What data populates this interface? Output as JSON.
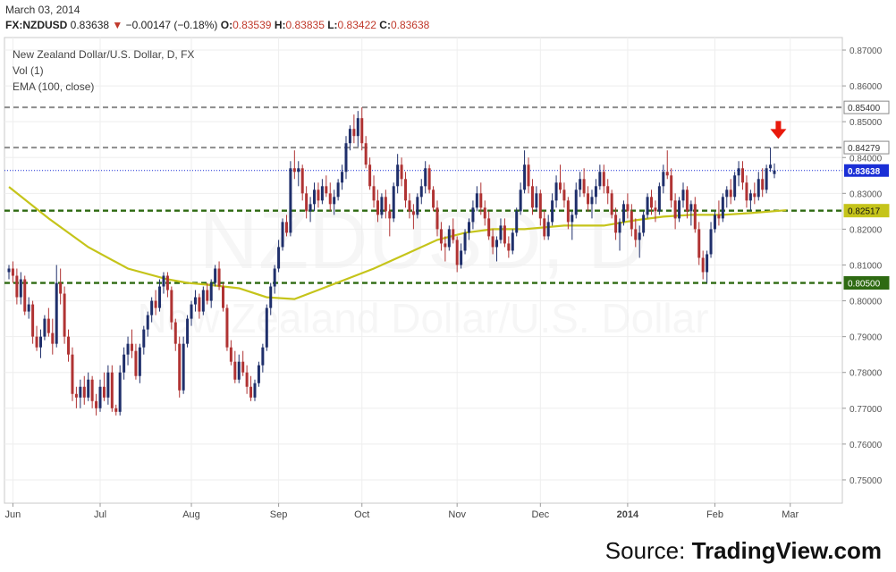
{
  "header": {
    "date": "March 03, 2014",
    "symbol": "FX:NZDUSD",
    "last": "0.83638",
    "change_arrow": "▼",
    "change": "−0.00147 (−0.18%)",
    "open_label": "O:",
    "open": "0.83539",
    "high_label": "H:",
    "high": "0.83835",
    "low_label": "L:",
    "low": "0.83422",
    "close_label": "C:",
    "close": "0.83638"
  },
  "legend": {
    "title": "New Zealand Dollar/U.S. Dollar, D, FX",
    "vol": "Vol (1)",
    "ema": "EMA (100, close)"
  },
  "watermark": {
    "line1": "NZDUSD, D",
    "line2": "New Zealand Dollar/U.S. Dollar"
  },
  "source": {
    "prefix": "Source: ",
    "brand": "TradingView.com"
  },
  "colors": {
    "up": "#1f2f6b",
    "down": "#b03333",
    "ema": "#c5c41a",
    "resistance": "#8c8c8c",
    "support": "#2e6a12",
    "arrow": "#e8190c",
    "price_line": "#1a2fd6"
  },
  "chart_data": {
    "type": "candlestick",
    "title": "New Zealand Dollar/U.S. Dollar, D, FX",
    "ylim": [
      0.7435,
      0.8735
    ],
    "y_ticks": [
      "0.87000",
      "0.86000",
      "0.85000",
      "0.84000",
      "0.83000",
      "0.82000",
      "0.81000",
      "0.80000",
      "0.79000",
      "0.78000",
      "0.77000",
      "0.76000",
      "0.75000"
    ],
    "x_labels": [
      {
        "label": "Jun",
        "index": 1
      },
      {
        "label": "Jul",
        "index": 23
      },
      {
        "label": "Aug",
        "index": 46
      },
      {
        "label": "Sep",
        "index": 68
      },
      {
        "label": "Oct",
        "index": 89
      },
      {
        "label": "Nov",
        "index": 113
      },
      {
        "label": "Dec",
        "index": 134
      },
      {
        "label": "2014",
        "index": 156
      },
      {
        "label": "Feb",
        "index": 178
      },
      {
        "label": "Mar",
        "index": 197
      }
    ],
    "horizontal_levels": [
      {
        "value": 0.854,
        "label": "0.85400",
        "style": "resistance"
      },
      {
        "value": 0.84279,
        "label": "0.84279",
        "style": "resistance"
      },
      {
        "value": 0.82517,
        "label": "0.82517",
        "style": "support"
      },
      {
        "value": 0.805,
        "label": "0.80500",
        "style": "support"
      }
    ],
    "last_price": {
      "value": 0.83638,
      "label": "0.83638"
    },
    "annotation": {
      "type": "down-arrow",
      "index": 194,
      "value": 0.8452
    },
    "ema": [
      [
        0,
        0.8318
      ],
      [
        10,
        0.823
      ],
      [
        20,
        0.815
      ],
      [
        30,
        0.809
      ],
      [
        40,
        0.806
      ],
      [
        45,
        0.805
      ],
      [
        50,
        0.8045
      ],
      [
        58,
        0.8035
      ],
      [
        65,
        0.801
      ],
      [
        72,
        0.8005
      ],
      [
        78,
        0.803
      ],
      [
        85,
        0.806
      ],
      [
        92,
        0.809
      ],
      [
        100,
        0.813
      ],
      [
        108,
        0.817
      ],
      [
        115,
        0.819
      ],
      [
        122,
        0.82
      ],
      [
        130,
        0.82
      ],
      [
        140,
        0.821
      ],
      [
        150,
        0.821
      ],
      [
        158,
        0.8225
      ],
      [
        165,
        0.8235
      ],
      [
        172,
        0.824
      ],
      [
        180,
        0.824
      ],
      [
        187,
        0.8245
      ],
      [
        196,
        0.8253
      ]
    ],
    "ohlc": [
      [
        0.808,
        0.81,
        0.806,
        0.809
      ],
      [
        0.809,
        0.811,
        0.805,
        0.807
      ],
      [
        0.807,
        0.809,
        0.799,
        0.801
      ],
      [
        0.801,
        0.808,
        0.799,
        0.806
      ],
      [
        0.806,
        0.807,
        0.796,
        0.797
      ],
      [
        0.797,
        0.801,
        0.795,
        0.799
      ],
      [
        0.799,
        0.8,
        0.788,
        0.79
      ],
      [
        0.79,
        0.793,
        0.786,
        0.787
      ],
      [
        0.787,
        0.792,
        0.784,
        0.79
      ],
      [
        0.79,
        0.796,
        0.789,
        0.795
      ],
      [
        0.795,
        0.798,
        0.79,
        0.791
      ],
      [
        0.791,
        0.795,
        0.785,
        0.788
      ],
      [
        0.788,
        0.81,
        0.787,
        0.805
      ],
      [
        0.805,
        0.809,
        0.799,
        0.802
      ],
      [
        0.802,
        0.804,
        0.788,
        0.79
      ],
      [
        0.79,
        0.792,
        0.783,
        0.785
      ],
      [
        0.785,
        0.787,
        0.772,
        0.774
      ],
      [
        0.774,
        0.776,
        0.77,
        0.773
      ],
      [
        0.773,
        0.778,
        0.77,
        0.776
      ],
      [
        0.776,
        0.779,
        0.771,
        0.773
      ],
      [
        0.773,
        0.78,
        0.772,
        0.778
      ],
      [
        0.778,
        0.779,
        0.77,
        0.772
      ],
      [
        0.772,
        0.774,
        0.768,
        0.77
      ],
      [
        0.77,
        0.778,
        0.769,
        0.776
      ],
      [
        0.776,
        0.78,
        0.772,
        0.773
      ],
      [
        0.773,
        0.782,
        0.771,
        0.78
      ],
      [
        0.78,
        0.782,
        0.769,
        0.77
      ],
      [
        0.77,
        0.771,
        0.768,
        0.769
      ],
      [
        0.769,
        0.782,
        0.768,
        0.78
      ],
      [
        0.78,
        0.787,
        0.778,
        0.785
      ],
      [
        0.785,
        0.79,
        0.782,
        0.788
      ],
      [
        0.788,
        0.792,
        0.784,
        0.786
      ],
      [
        0.786,
        0.788,
        0.778,
        0.779
      ],
      [
        0.779,
        0.788,
        0.777,
        0.787
      ],
      [
        0.787,
        0.793,
        0.785,
        0.792
      ],
      [
        0.792,
        0.797,
        0.79,
        0.796
      ],
      [
        0.796,
        0.801,
        0.794,
        0.8
      ],
      [
        0.8,
        0.803,
        0.796,
        0.798
      ],
      [
        0.798,
        0.806,
        0.797,
        0.804
      ],
      [
        0.804,
        0.808,
        0.802,
        0.807
      ],
      [
        0.807,
        0.808,
        0.801,
        0.803
      ],
      [
        0.803,
        0.804,
        0.792,
        0.794
      ],
      [
        0.794,
        0.795,
        0.786,
        0.788
      ],
      [
        0.788,
        0.79,
        0.773,
        0.775
      ],
      [
        0.775,
        0.79,
        0.774,
        0.788
      ],
      [
        0.788,
        0.796,
        0.787,
        0.795
      ],
      [
        0.795,
        0.8,
        0.793,
        0.799
      ],
      [
        0.799,
        0.803,
        0.797,
        0.801
      ],
      [
        0.801,
        0.802,
        0.795,
        0.797
      ],
      [
        0.797,
        0.804,
        0.796,
        0.803
      ],
      [
        0.803,
        0.805,
        0.799,
        0.8
      ],
      [
        0.8,
        0.806,
        0.798,
        0.805
      ],
      [
        0.805,
        0.81,
        0.804,
        0.809
      ],
      [
        0.809,
        0.811,
        0.803,
        0.804
      ],
      [
        0.804,
        0.805,
        0.797,
        0.798
      ],
      [
        0.798,
        0.799,
        0.786,
        0.787
      ],
      [
        0.787,
        0.789,
        0.782,
        0.783
      ],
      [
        0.783,
        0.786,
        0.777,
        0.778
      ],
      [
        0.778,
        0.785,
        0.777,
        0.783
      ],
      [
        0.783,
        0.786,
        0.779,
        0.78
      ],
      [
        0.78,
        0.782,
        0.774,
        0.776
      ],
      [
        0.776,
        0.779,
        0.772,
        0.773
      ],
      [
        0.773,
        0.778,
        0.772,
        0.777
      ],
      [
        0.777,
        0.783,
        0.776,
        0.782
      ],
      [
        0.782,
        0.788,
        0.78,
        0.787
      ],
      [
        0.787,
        0.799,
        0.786,
        0.798
      ],
      [
        0.798,
        0.805,
        0.796,
        0.804
      ],
      [
        0.804,
        0.81,
        0.802,
        0.809
      ],
      [
        0.809,
        0.817,
        0.808,
        0.815
      ],
      [
        0.815,
        0.823,
        0.814,
        0.822
      ],
      [
        0.822,
        0.824,
        0.818,
        0.819
      ],
      [
        0.819,
        0.839,
        0.818,
        0.837
      ],
      [
        0.837,
        0.842,
        0.834,
        0.836
      ],
      [
        0.836,
        0.839,
        0.832,
        0.837
      ],
      [
        0.837,
        0.838,
        0.828,
        0.83
      ],
      [
        0.83,
        0.832,
        0.823,
        0.825
      ],
      [
        0.825,
        0.829,
        0.822,
        0.827
      ],
      [
        0.827,
        0.833,
        0.825,
        0.831
      ],
      [
        0.831,
        0.833,
        0.826,
        0.828
      ],
      [
        0.828,
        0.834,
        0.827,
        0.832
      ],
      [
        0.832,
        0.835,
        0.829,
        0.83
      ],
      [
        0.83,
        0.833,
        0.825,
        0.827
      ],
      [
        0.827,
        0.831,
        0.824,
        0.829
      ],
      [
        0.829,
        0.834,
        0.828,
        0.833
      ],
      [
        0.833,
        0.838,
        0.831,
        0.836
      ],
      [
        0.836,
        0.846,
        0.834,
        0.844
      ],
      [
        0.844,
        0.849,
        0.842,
        0.848
      ],
      [
        0.848,
        0.852,
        0.844,
        0.846
      ],
      [
        0.846,
        0.853,
        0.843,
        0.851
      ],
      [
        0.851,
        0.854,
        0.842,
        0.844
      ],
      [
        0.844,
        0.846,
        0.837,
        0.838
      ],
      [
        0.838,
        0.84,
        0.831,
        0.832
      ],
      [
        0.832,
        0.835,
        0.826,
        0.828
      ],
      [
        0.828,
        0.831,
        0.822,
        0.824
      ],
      [
        0.824,
        0.83,
        0.823,
        0.829
      ],
      [
        0.829,
        0.831,
        0.823,
        0.825
      ],
      [
        0.825,
        0.827,
        0.818,
        0.823
      ],
      [
        0.823,
        0.833,
        0.822,
        0.832
      ],
      [
        0.832,
        0.841,
        0.83,
        0.838
      ],
      [
        0.838,
        0.84,
        0.832,
        0.834
      ],
      [
        0.834,
        0.836,
        0.826,
        0.828
      ],
      [
        0.828,
        0.83,
        0.823,
        0.825
      ],
      [
        0.825,
        0.827,
        0.82,
        0.824
      ],
      [
        0.824,
        0.83,
        0.823,
        0.829
      ],
      [
        0.829,
        0.834,
        0.827,
        0.832
      ],
      [
        0.832,
        0.839,
        0.83,
        0.837
      ],
      [
        0.837,
        0.838,
        0.83,
        0.831
      ],
      [
        0.831,
        0.832,
        0.825,
        0.826
      ],
      [
        0.826,
        0.828,
        0.818,
        0.82
      ],
      [
        0.82,
        0.822,
        0.814,
        0.816
      ],
      [
        0.816,
        0.818,
        0.811,
        0.815
      ],
      [
        0.815,
        0.821,
        0.814,
        0.82
      ],
      [
        0.82,
        0.823,
        0.816,
        0.817
      ],
      [
        0.817,
        0.818,
        0.808,
        0.81
      ],
      [
        0.81,
        0.816,
        0.809,
        0.814
      ],
      [
        0.814,
        0.82,
        0.813,
        0.819
      ],
      [
        0.819,
        0.823,
        0.817,
        0.822
      ],
      [
        0.822,
        0.828,
        0.82,
        0.826
      ],
      [
        0.826,
        0.832,
        0.825,
        0.83
      ],
      [
        0.83,
        0.833,
        0.824,
        0.826
      ],
      [
        0.826,
        0.828,
        0.821,
        0.823
      ],
      [
        0.823,
        0.825,
        0.817,
        0.818
      ],
      [
        0.818,
        0.82,
        0.813,
        0.815
      ],
      [
        0.815,
        0.818,
        0.811,
        0.817
      ],
      [
        0.817,
        0.823,
        0.816,
        0.821
      ],
      [
        0.821,
        0.823,
        0.815,
        0.816
      ],
      [
        0.816,
        0.818,
        0.812,
        0.814
      ],
      [
        0.814,
        0.82,
        0.813,
        0.819
      ],
      [
        0.819,
        0.826,
        0.818,
        0.825
      ],
      [
        0.825,
        0.833,
        0.824,
        0.831
      ],
      [
        0.831,
        0.842,
        0.83,
        0.838
      ],
      [
        0.838,
        0.84,
        0.83,
        0.832
      ],
      [
        0.832,
        0.834,
        0.824,
        0.826
      ],
      [
        0.826,
        0.832,
        0.825,
        0.83
      ],
      [
        0.83,
        0.831,
        0.821,
        0.823
      ],
      [
        0.823,
        0.825,
        0.817,
        0.818
      ],
      [
        0.818,
        0.824,
        0.817,
        0.822
      ],
      [
        0.822,
        0.83,
        0.821,
        0.828
      ],
      [
        0.828,
        0.835,
        0.826,
        0.833
      ],
      [
        0.833,
        0.838,
        0.83,
        0.831
      ],
      [
        0.831,
        0.833,
        0.826,
        0.828
      ],
      [
        0.828,
        0.829,
        0.82,
        0.822
      ],
      [
        0.822,
        0.825,
        0.817,
        0.824
      ],
      [
        0.824,
        0.833,
        0.823,
        0.831
      ],
      [
        0.831,
        0.836,
        0.829,
        0.834
      ],
      [
        0.834,
        0.837,
        0.829,
        0.83
      ],
      [
        0.83,
        0.832,
        0.825,
        0.827
      ],
      [
        0.827,
        0.831,
        0.823,
        0.829
      ],
      [
        0.829,
        0.834,
        0.827,
        0.832
      ],
      [
        0.832,
        0.838,
        0.831,
        0.836
      ],
      [
        0.836,
        0.838,
        0.83,
        0.832
      ],
      [
        0.832,
        0.834,
        0.827,
        0.83
      ],
      [
        0.83,
        0.831,
        0.823,
        0.824
      ],
      [
        0.824,
        0.826,
        0.817,
        0.819
      ],
      [
        0.819,
        0.823,
        0.814,
        0.822
      ],
      [
        0.822,
        0.828,
        0.821,
        0.827
      ],
      [
        0.827,
        0.83,
        0.823,
        0.825
      ],
      [
        0.825,
        0.827,
        0.818,
        0.82
      ],
      [
        0.82,
        0.823,
        0.815,
        0.817
      ],
      [
        0.817,
        0.821,
        0.812,
        0.819
      ],
      [
        0.819,
        0.825,
        0.818,
        0.824
      ],
      [
        0.824,
        0.83,
        0.823,
        0.829
      ],
      [
        0.829,
        0.831,
        0.824,
        0.826
      ],
      [
        0.826,
        0.828,
        0.822,
        0.825
      ],
      [
        0.825,
        0.833,
        0.824,
        0.832
      ],
      [
        0.832,
        0.838,
        0.83,
        0.836
      ],
      [
        0.836,
        0.842,
        0.834,
        0.835
      ],
      [
        0.835,
        0.837,
        0.826,
        0.828
      ],
      [
        0.828,
        0.83,
        0.82,
        0.823
      ],
      [
        0.823,
        0.829,
        0.822,
        0.828
      ],
      [
        0.828,
        0.833,
        0.826,
        0.831
      ],
      [
        0.831,
        0.832,
        0.823,
        0.825
      ],
      [
        0.825,
        0.828,
        0.821,
        0.827
      ],
      [
        0.827,
        0.829,
        0.819,
        0.82
      ],
      [
        0.82,
        0.822,
        0.81,
        0.812
      ],
      [
        0.812,
        0.814,
        0.806,
        0.808
      ],
      [
        0.808,
        0.814,
        0.805,
        0.813
      ],
      [
        0.813,
        0.822,
        0.812,
        0.82
      ],
      [
        0.82,
        0.825,
        0.819,
        0.824
      ],
      [
        0.824,
        0.828,
        0.821,
        0.823
      ],
      [
        0.823,
        0.83,
        0.822,
        0.829
      ],
      [
        0.829,
        0.832,
        0.826,
        0.831
      ],
      [
        0.831,
        0.834,
        0.827,
        0.829
      ],
      [
        0.829,
        0.836,
        0.828,
        0.835
      ],
      [
        0.835,
        0.839,
        0.832,
        0.837
      ],
      [
        0.837,
        0.839,
        0.831,
        0.833
      ],
      [
        0.833,
        0.835,
        0.826,
        0.828
      ],
      [
        0.828,
        0.831,
        0.825,
        0.83
      ],
      [
        0.83,
        0.833,
        0.827,
        0.829
      ],
      [
        0.829,
        0.836,
        0.828,
        0.834
      ],
      [
        0.834,
        0.837,
        0.829,
        0.831
      ],
      [
        0.831,
        0.838,
        0.83,
        0.837
      ],
      [
        0.837,
        0.8428,
        0.836,
        0.838
      ],
      [
        0.83539,
        0.83835,
        0.83422,
        0.83638
      ]
    ]
  }
}
